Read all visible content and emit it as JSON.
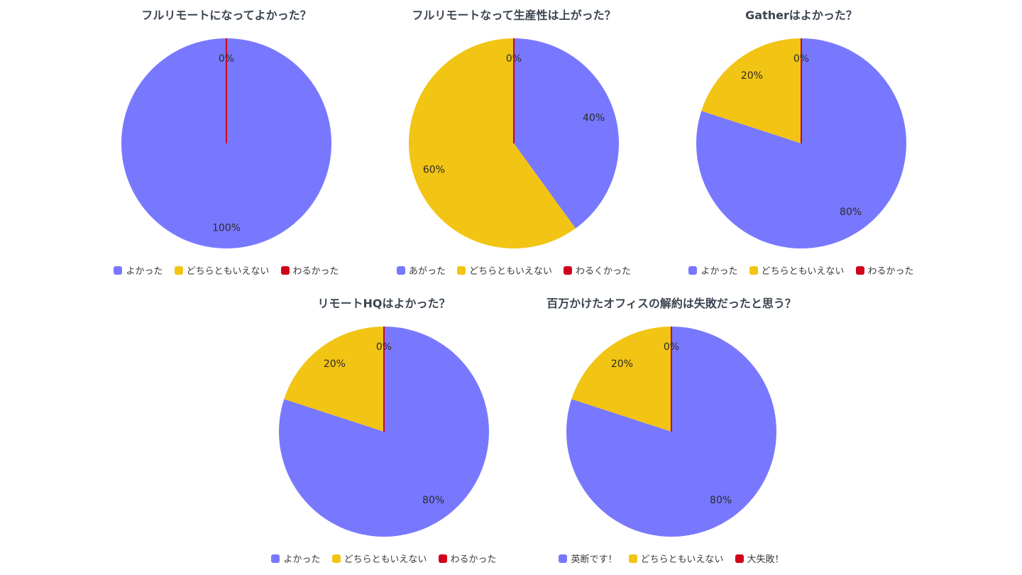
{
  "colors": {
    "blue": "#7878ff",
    "yellow": "#f2c413",
    "red": "#d0021b"
  },
  "chart_data": [
    {
      "type": "pie",
      "title": "フルリモートになってよかった？",
      "categories": [
        "よかった",
        "どちらともいえない",
        "わるかった"
      ],
      "values": [
        100,
        0,
        0
      ],
      "labels": [
        "100%",
        "",
        "0%"
      ],
      "colors": [
        "#7878ff",
        "#f2c413",
        "#d0021b"
      ],
      "legend": "bottom"
    },
    {
      "type": "pie",
      "title": "フルリモートなって生産性は上がった？",
      "categories": [
        "あがった",
        "どちらともいえない",
        "わるくかった"
      ],
      "values": [
        40,
        60,
        0
      ],
      "labels": [
        "40%",
        "60%",
        "0%"
      ],
      "colors": [
        "#7878ff",
        "#f2c413",
        "#d0021b"
      ],
      "legend": "bottom"
    },
    {
      "type": "pie",
      "title": "Gatherはよかった？",
      "categories": [
        "よかった",
        "どちらともいえない",
        "わるかった"
      ],
      "values": [
        80,
        20,
        0
      ],
      "labels": [
        "80%",
        "20%",
        "0%"
      ],
      "colors": [
        "#7878ff",
        "#f2c413",
        "#d0021b"
      ],
      "legend": "bottom"
    },
    {
      "type": "pie",
      "title": "リモートHQはよかった？",
      "categories": [
        "よかった",
        "どちらともいえない",
        "わるかった"
      ],
      "values": [
        80,
        20,
        0
      ],
      "labels": [
        "80%",
        "20%",
        "0%"
      ],
      "colors": [
        "#7878ff",
        "#f2c413",
        "#d0021b"
      ],
      "legend": "bottom"
    },
    {
      "type": "pie",
      "title": "百万かけたオフィスの解約は失敗だったと思う？",
      "categories": [
        "英断です！",
        "どちらともいえない",
        "大失敗！"
      ],
      "values": [
        80,
        20,
        0
      ],
      "labels": [
        "80%",
        "20%",
        "0%"
      ],
      "colors": [
        "#7878ff",
        "#f2c413",
        "#d0021b"
      ],
      "legend": "bottom"
    }
  ]
}
